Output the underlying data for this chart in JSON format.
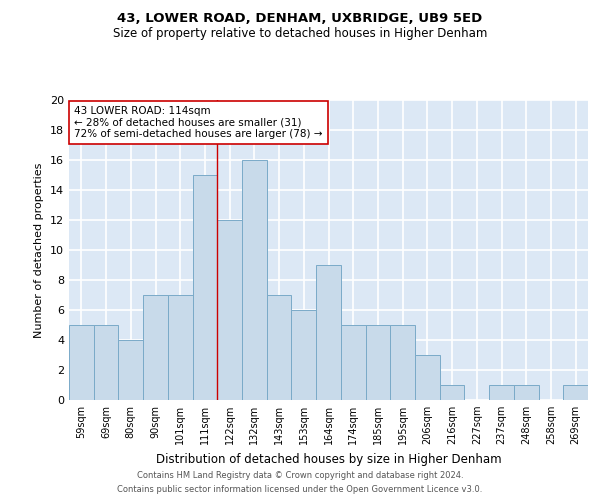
{
  "title1": "43, LOWER ROAD, DENHAM, UXBRIDGE, UB9 5ED",
  "title2": "Size of property relative to detached houses in Higher Denham",
  "xlabel": "Distribution of detached houses by size in Higher Denham",
  "ylabel": "Number of detached properties",
  "categories": [
    "59sqm",
    "69sqm",
    "80sqm",
    "90sqm",
    "101sqm",
    "111sqm",
    "122sqm",
    "132sqm",
    "143sqm",
    "153sqm",
    "164sqm",
    "174sqm",
    "185sqm",
    "195sqm",
    "206sqm",
    "216sqm",
    "227sqm",
    "237sqm",
    "248sqm",
    "258sqm",
    "269sqm"
  ],
  "values": [
    5,
    5,
    4,
    7,
    7,
    15,
    12,
    16,
    7,
    6,
    9,
    5,
    5,
    5,
    3,
    1,
    0,
    1,
    1,
    0,
    1
  ],
  "bar_color": "#c8daea",
  "bar_edge_color": "#7aaac8",
  "vline_x_index": 5,
  "vline_color": "#cc0000",
  "annotation_text": "43 LOWER ROAD: 114sqm\n← 28% of detached houses are smaller (31)\n72% of semi-detached houses are larger (78) →",
  "annotation_box_color": "#ffffff",
  "annotation_box_edge": "#cc0000",
  "ylim": [
    0,
    20
  ],
  "yticks": [
    0,
    2,
    4,
    6,
    8,
    10,
    12,
    14,
    16,
    18,
    20
  ],
  "footnote1": "Contains HM Land Registry data © Crown copyright and database right 2024.",
  "footnote2": "Contains public sector information licensed under the Open Government Licence v3.0.",
  "bg_color": "#ffffff",
  "plot_bg_color": "#dce8f5",
  "grid_color": "#ffffff",
  "title1_fontsize": 9.5,
  "title2_fontsize": 8.5
}
